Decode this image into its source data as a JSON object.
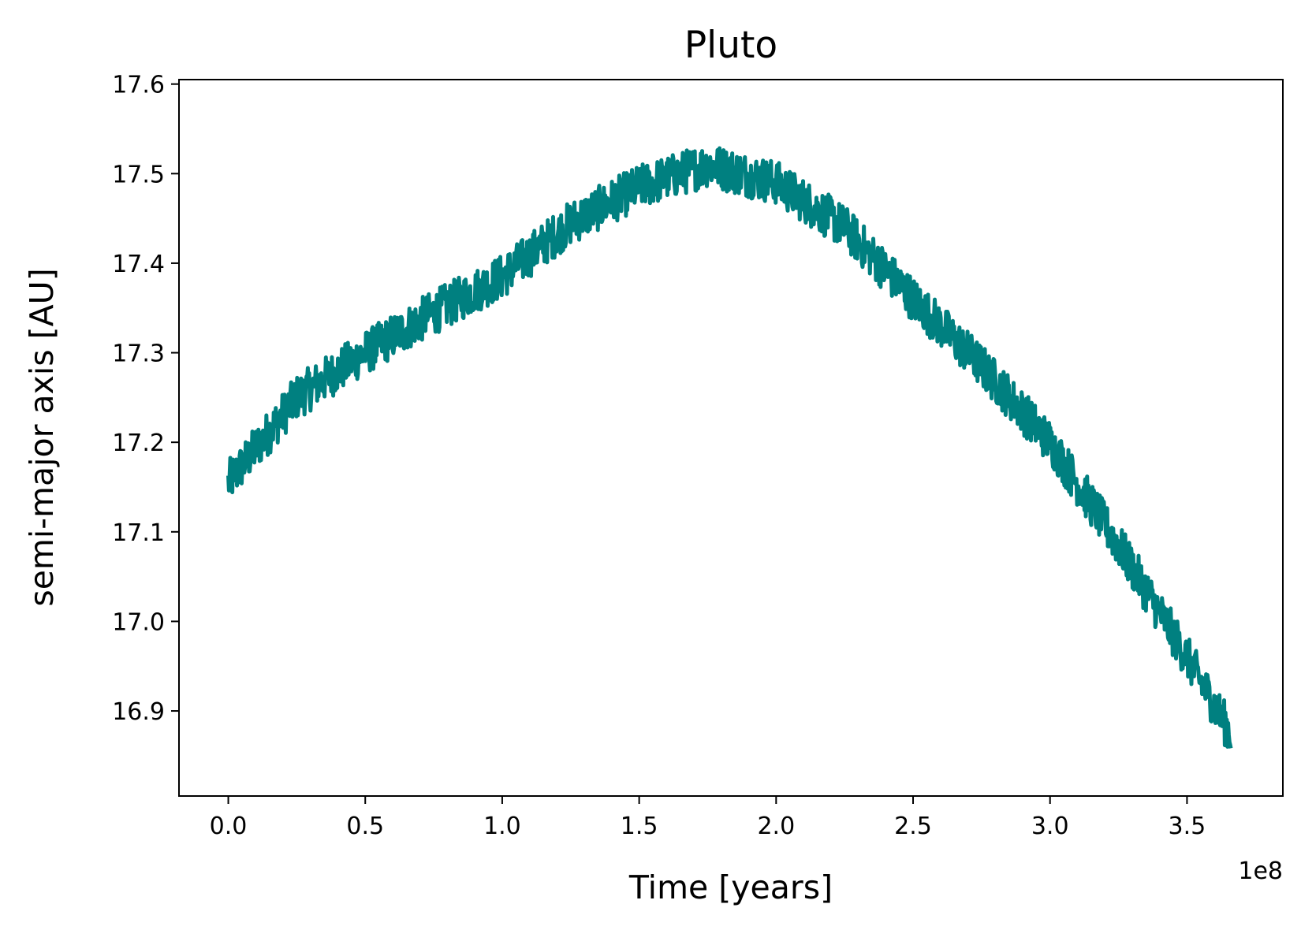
{
  "chart_data": {
    "type": "line",
    "title": "Pluto",
    "xlabel": "Time [years]",
    "ylabel": "semi-major axis [AU]",
    "x_offset_label": "1e8",
    "xlim": [
      -0.18,
      3.85
    ],
    "ylim": [
      16.805,
      17.605
    ],
    "x_ticks": [
      0.0,
      0.5,
      1.0,
      1.5,
      2.0,
      2.5,
      3.0,
      3.5
    ],
    "x_tick_labels": [
      "0.0",
      "0.5",
      "1.0",
      "1.5",
      "2.0",
      "2.5",
      "3.0",
      "3.5"
    ],
    "y_ticks": [
      16.9,
      17.0,
      17.1,
      17.2,
      17.3,
      17.4,
      17.5,
      17.6
    ],
    "y_tick_labels": [
      "16.9",
      "17.0",
      "17.1",
      "17.2",
      "17.3",
      "17.4",
      "17.5",
      "17.6"
    ],
    "grid": false,
    "line_color": "#008080",
    "series": [
      {
        "trend_points": [
          {
            "x": 0.0,
            "y": 17.155
          },
          {
            "x": 0.25,
            "y": 17.25
          },
          {
            "x": 0.5,
            "y": 17.3
          },
          {
            "x": 0.75,
            "y": 17.345
          },
          {
            "x": 1.0,
            "y": 17.385
          },
          {
            "x": 1.25,
            "y": 17.445
          },
          {
            "x": 1.5,
            "y": 17.485
          },
          {
            "x": 1.75,
            "y": 17.51
          },
          {
            "x": 2.0,
            "y": 17.49
          },
          {
            "x": 2.25,
            "y": 17.44
          },
          {
            "x": 2.5,
            "y": 17.36
          },
          {
            "x": 2.75,
            "y": 17.285
          },
          {
            "x": 3.0,
            "y": 17.2
          },
          {
            "x": 3.25,
            "y": 17.085
          },
          {
            "x": 3.5,
            "y": 16.96
          },
          {
            "x": 3.65,
            "y": 16.88
          }
        ],
        "x_max": 3.66,
        "y_max": 17.565,
        "y_min": 16.845,
        "noise_amplitude": 0.025
      }
    ]
  }
}
